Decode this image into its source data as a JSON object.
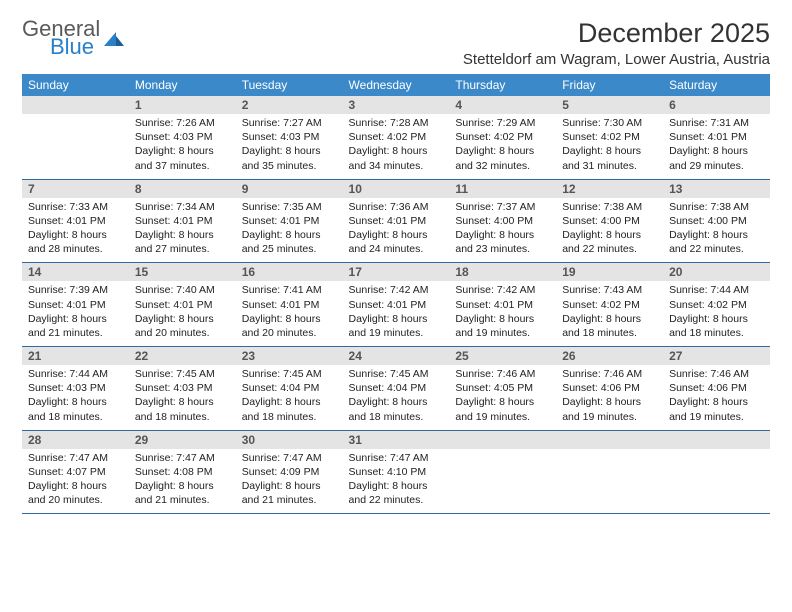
{
  "logo": {
    "word1": "General",
    "word2": "Blue"
  },
  "title": "December 2025",
  "location": "Stetteldorf am Wagram, Lower Austria, Austria",
  "colors": {
    "header_bg": "#3b89c9",
    "header_text": "#ffffff",
    "daynum_bg": "#e4e4e4",
    "daynum_text": "#555555",
    "row_border": "#2f6aa0",
    "body_text": "#222222",
    "logo_gray": "#5a5a5a",
    "logo_blue": "#2a7fc9"
  },
  "day_headers": [
    "Sunday",
    "Monday",
    "Tuesday",
    "Wednesday",
    "Thursday",
    "Friday",
    "Saturday"
  ],
  "weeks": [
    [
      {
        "n": "",
        "lines": []
      },
      {
        "n": "1",
        "lines": [
          "Sunrise: 7:26 AM",
          "Sunset: 4:03 PM",
          "Daylight: 8 hours",
          "and 37 minutes."
        ]
      },
      {
        "n": "2",
        "lines": [
          "Sunrise: 7:27 AM",
          "Sunset: 4:03 PM",
          "Daylight: 8 hours",
          "and 35 minutes."
        ]
      },
      {
        "n": "3",
        "lines": [
          "Sunrise: 7:28 AM",
          "Sunset: 4:02 PM",
          "Daylight: 8 hours",
          "and 34 minutes."
        ]
      },
      {
        "n": "4",
        "lines": [
          "Sunrise: 7:29 AM",
          "Sunset: 4:02 PM",
          "Daylight: 8 hours",
          "and 32 minutes."
        ]
      },
      {
        "n": "5",
        "lines": [
          "Sunrise: 7:30 AM",
          "Sunset: 4:02 PM",
          "Daylight: 8 hours",
          "and 31 minutes."
        ]
      },
      {
        "n": "6",
        "lines": [
          "Sunrise: 7:31 AM",
          "Sunset: 4:01 PM",
          "Daylight: 8 hours",
          "and 29 minutes."
        ]
      }
    ],
    [
      {
        "n": "7",
        "lines": [
          "Sunrise: 7:33 AM",
          "Sunset: 4:01 PM",
          "Daylight: 8 hours",
          "and 28 minutes."
        ]
      },
      {
        "n": "8",
        "lines": [
          "Sunrise: 7:34 AM",
          "Sunset: 4:01 PM",
          "Daylight: 8 hours",
          "and 27 minutes."
        ]
      },
      {
        "n": "9",
        "lines": [
          "Sunrise: 7:35 AM",
          "Sunset: 4:01 PM",
          "Daylight: 8 hours",
          "and 25 minutes."
        ]
      },
      {
        "n": "10",
        "lines": [
          "Sunrise: 7:36 AM",
          "Sunset: 4:01 PM",
          "Daylight: 8 hours",
          "and 24 minutes."
        ]
      },
      {
        "n": "11",
        "lines": [
          "Sunrise: 7:37 AM",
          "Sunset: 4:00 PM",
          "Daylight: 8 hours",
          "and 23 minutes."
        ]
      },
      {
        "n": "12",
        "lines": [
          "Sunrise: 7:38 AM",
          "Sunset: 4:00 PM",
          "Daylight: 8 hours",
          "and 22 minutes."
        ]
      },
      {
        "n": "13",
        "lines": [
          "Sunrise: 7:38 AM",
          "Sunset: 4:00 PM",
          "Daylight: 8 hours",
          "and 22 minutes."
        ]
      }
    ],
    [
      {
        "n": "14",
        "lines": [
          "Sunrise: 7:39 AM",
          "Sunset: 4:01 PM",
          "Daylight: 8 hours",
          "and 21 minutes."
        ]
      },
      {
        "n": "15",
        "lines": [
          "Sunrise: 7:40 AM",
          "Sunset: 4:01 PM",
          "Daylight: 8 hours",
          "and 20 minutes."
        ]
      },
      {
        "n": "16",
        "lines": [
          "Sunrise: 7:41 AM",
          "Sunset: 4:01 PM",
          "Daylight: 8 hours",
          "and 20 minutes."
        ]
      },
      {
        "n": "17",
        "lines": [
          "Sunrise: 7:42 AM",
          "Sunset: 4:01 PM",
          "Daylight: 8 hours",
          "and 19 minutes."
        ]
      },
      {
        "n": "18",
        "lines": [
          "Sunrise: 7:42 AM",
          "Sunset: 4:01 PM",
          "Daylight: 8 hours",
          "and 19 minutes."
        ]
      },
      {
        "n": "19",
        "lines": [
          "Sunrise: 7:43 AM",
          "Sunset: 4:02 PM",
          "Daylight: 8 hours",
          "and 18 minutes."
        ]
      },
      {
        "n": "20",
        "lines": [
          "Sunrise: 7:44 AM",
          "Sunset: 4:02 PM",
          "Daylight: 8 hours",
          "and 18 minutes."
        ]
      }
    ],
    [
      {
        "n": "21",
        "lines": [
          "Sunrise: 7:44 AM",
          "Sunset: 4:03 PM",
          "Daylight: 8 hours",
          "and 18 minutes."
        ]
      },
      {
        "n": "22",
        "lines": [
          "Sunrise: 7:45 AM",
          "Sunset: 4:03 PM",
          "Daylight: 8 hours",
          "and 18 minutes."
        ]
      },
      {
        "n": "23",
        "lines": [
          "Sunrise: 7:45 AM",
          "Sunset: 4:04 PM",
          "Daylight: 8 hours",
          "and 18 minutes."
        ]
      },
      {
        "n": "24",
        "lines": [
          "Sunrise: 7:45 AM",
          "Sunset: 4:04 PM",
          "Daylight: 8 hours",
          "and 18 minutes."
        ]
      },
      {
        "n": "25",
        "lines": [
          "Sunrise: 7:46 AM",
          "Sunset: 4:05 PM",
          "Daylight: 8 hours",
          "and 19 minutes."
        ]
      },
      {
        "n": "26",
        "lines": [
          "Sunrise: 7:46 AM",
          "Sunset: 4:06 PM",
          "Daylight: 8 hours",
          "and 19 minutes."
        ]
      },
      {
        "n": "27",
        "lines": [
          "Sunrise: 7:46 AM",
          "Sunset: 4:06 PM",
          "Daylight: 8 hours",
          "and 19 minutes."
        ]
      }
    ],
    [
      {
        "n": "28",
        "lines": [
          "Sunrise: 7:47 AM",
          "Sunset: 4:07 PM",
          "Daylight: 8 hours",
          "and 20 minutes."
        ]
      },
      {
        "n": "29",
        "lines": [
          "Sunrise: 7:47 AM",
          "Sunset: 4:08 PM",
          "Daylight: 8 hours",
          "and 21 minutes."
        ]
      },
      {
        "n": "30",
        "lines": [
          "Sunrise: 7:47 AM",
          "Sunset: 4:09 PM",
          "Daylight: 8 hours",
          "and 21 minutes."
        ]
      },
      {
        "n": "31",
        "lines": [
          "Sunrise: 7:47 AM",
          "Sunset: 4:10 PM",
          "Daylight: 8 hours",
          "and 22 minutes."
        ]
      },
      {
        "n": "",
        "lines": []
      },
      {
        "n": "",
        "lines": []
      },
      {
        "n": "",
        "lines": []
      }
    ]
  ]
}
